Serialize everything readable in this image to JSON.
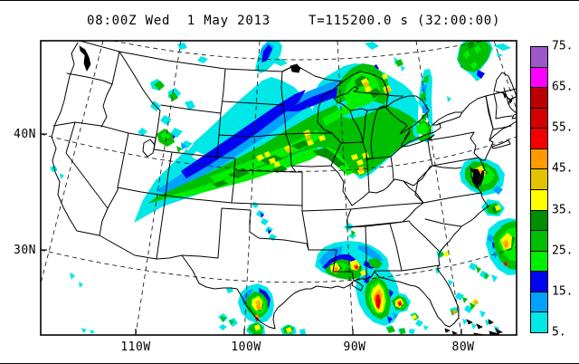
{
  "title": {
    "left": "08:00Z Wed  1 May 2013",
    "right": "T=115200.0 s (32:00:00)"
  },
  "map": {
    "lat_labels": [
      {
        "text": "40N"
      },
      {
        "text": "30N"
      }
    ],
    "lon_labels": [
      {
        "text": "110W"
      },
      {
        "text": "100W"
      },
      {
        "text": "90W"
      },
      {
        "text": "80W"
      }
    ]
  },
  "colorbar": {
    "tick_labels": [
      "75.",
      "65.",
      "55.",
      "45.",
      "35.",
      "25.",
      "15.",
      "5."
    ],
    "levels_top_to_bottom": [
      {
        "range": "70-75",
        "color": "#9C57C9"
      },
      {
        "range": "65-70",
        "color": "#FF00FF"
      },
      {
        "range": "60-65",
        "color": "#BC0000"
      },
      {
        "range": "55-60",
        "color": "#D40000"
      },
      {
        "range": "50-55",
        "color": "#F50000"
      },
      {
        "range": "45-50",
        "color": "#FF9A00"
      },
      {
        "range": "40-45",
        "color": "#E3C200"
      },
      {
        "range": "35-40",
        "color": "#FFFF00"
      },
      {
        "range": "30-35",
        "color": "#008F00"
      },
      {
        "range": "25-30",
        "color": "#00BE00"
      },
      {
        "range": "20-25",
        "color": "#00EF00"
      },
      {
        "range": "15-20",
        "color": "#0004EF"
      },
      {
        "range": "10-15",
        "color": "#00A2FF"
      },
      {
        "range": "5-10",
        "color": "#00E7E7"
      }
    ]
  },
  "chart_data": {
    "type": "heatmap",
    "title": "08:00Z Wed 1 May 2013   T=115200.0 s (32:00:00)",
    "valid_time": "08:00Z Wed 1 May 2013",
    "model_time_s": 115200.0,
    "elapsed": "32:00:00",
    "x_tick_labels": [
      "110W",
      "100W",
      "90W",
      "80W"
    ],
    "y_tick_labels": [
      "40N",
      "30N"
    ],
    "grid": "dashed lat/lon lines every 10 degrees",
    "legend_position": "right",
    "colorbar_ticks": [
      75,
      65,
      55,
      45,
      35,
      25,
      15,
      5
    ],
    "colorbar_range": [
      5,
      75
    ],
    "regions": [
      {
        "name": "central-plains-to-midwest-band",
        "extent": "SE Wyoming / NE Colorado through Nebraska, Iowa, Missouri, Illinois toward Wisconsin",
        "max_level": 45
      },
      {
        "name": "montana-wyoming-scattered-showers",
        "extent": "eastern Montana and Wyoming",
        "max_level": 30
      },
      {
        "name": "north-dakota-lobe",
        "extent": "eastern North Dakota into Manitoba",
        "max_level": 20
      },
      {
        "name": "wisconsin-upper-michigan-cluster",
        "extent": "Wisconsin / upper Michigan / Lake Superior",
        "max_level": 45
      },
      {
        "name": "lake-huron-narrow-band",
        "extent": "north-south band over Lake Huron into Ontario",
        "max_level": 30
      },
      {
        "name": "maine-quebec-cluster",
        "extent": "northern New England / Quebec border",
        "max_level": 30
      },
      {
        "name": "mid-atlantic-offshore-cells",
        "extent": "off Chesapeake / Delmarva coast",
        "max_level": 50
      },
      {
        "name": "oklahoma-scattered-cells",
        "extent": "central Oklahoma / Kansas",
        "max_level": 20
      },
      {
        "name": "south-texas-cells",
        "extent": "south Texas near Rio Grande",
        "max_level": 55
      },
      {
        "name": "louisiana-mississippi-complex",
        "extent": "Louisiana / Mississippi coast",
        "max_level": 55
      },
      {
        "name": "gulf-of-mexico-storms",
        "extent": "northern Gulf south of Louisiana",
        "max_level": 60
      },
      {
        "name": "atlantic-offshore-band",
        "extent": "western Atlantic east of Carolinas / Florida",
        "max_level": 55
      },
      {
        "name": "florida-bahamas-scattered",
        "extent": "Florida peninsula and Bahamas",
        "max_level": 45
      }
    ]
  }
}
